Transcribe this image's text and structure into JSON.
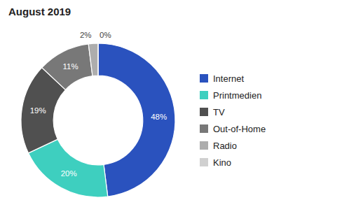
{
  "chart_data": {
    "type": "donut",
    "title": "August 2019",
    "categories": [
      "Internet",
      "Printmedien",
      "TV",
      "Out-of-Home",
      "Radio",
      "Kino"
    ],
    "values": [
      48,
      20,
      19,
      11,
      2,
      0
    ],
    "value_labels": [
      "48%",
      "20%",
      "19%",
      "11%",
      "2%",
      "0%"
    ],
    "colors": [
      "#2A52BE",
      "#3ECFBF",
      "#505050",
      "#787878",
      "#ADADAD",
      "#D0D0D0"
    ],
    "data_labels": true,
    "legend": "right"
  }
}
